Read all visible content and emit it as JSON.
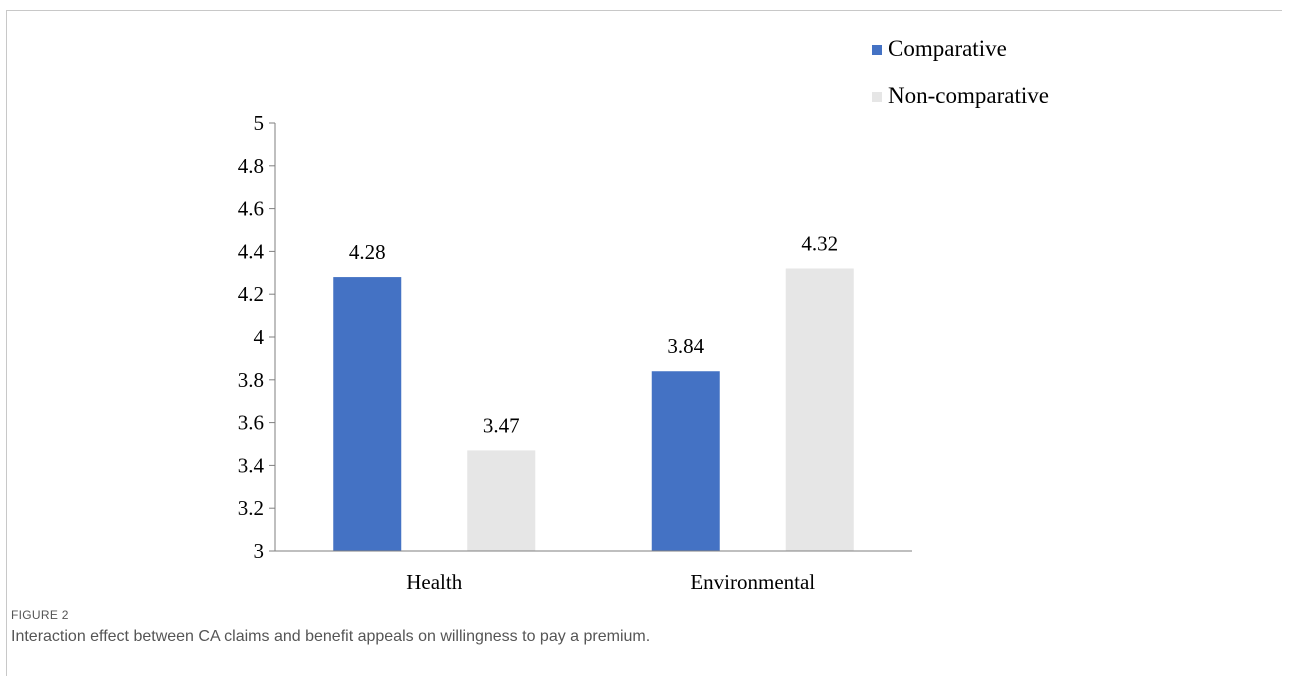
{
  "figure": {
    "label": "FIGURE 2",
    "caption": "Interaction effect between CA claims and benefit appeals on willingness to pay a premium."
  },
  "colors": {
    "comparative": "#4472c4",
    "non_comparative": "#e6e6e6",
    "axis": "#7f7f7f"
  },
  "chart_data": {
    "type": "bar",
    "categories": [
      "Health",
      "Environmental"
    ],
    "series": [
      {
        "name": "Comparative",
        "values": [
          4.28,
          3.84
        ]
      },
      {
        "name": "Non-comparative",
        "values": [
          3.47,
          4.32
        ]
      }
    ],
    "data_labels": [
      [
        "4.28",
        "3.84"
      ],
      [
        "3.47",
        "4.32"
      ]
    ],
    "ylim": [
      3,
      5
    ],
    "yticks": [
      "3",
      "3.2",
      "3.4",
      "3.6",
      "3.8",
      "4",
      "4.2",
      "4.4",
      "4.6",
      "4.8",
      "5"
    ],
    "title": "",
    "xlabel": "",
    "ylabel": "",
    "grid": false,
    "legend_position": "top-right"
  }
}
